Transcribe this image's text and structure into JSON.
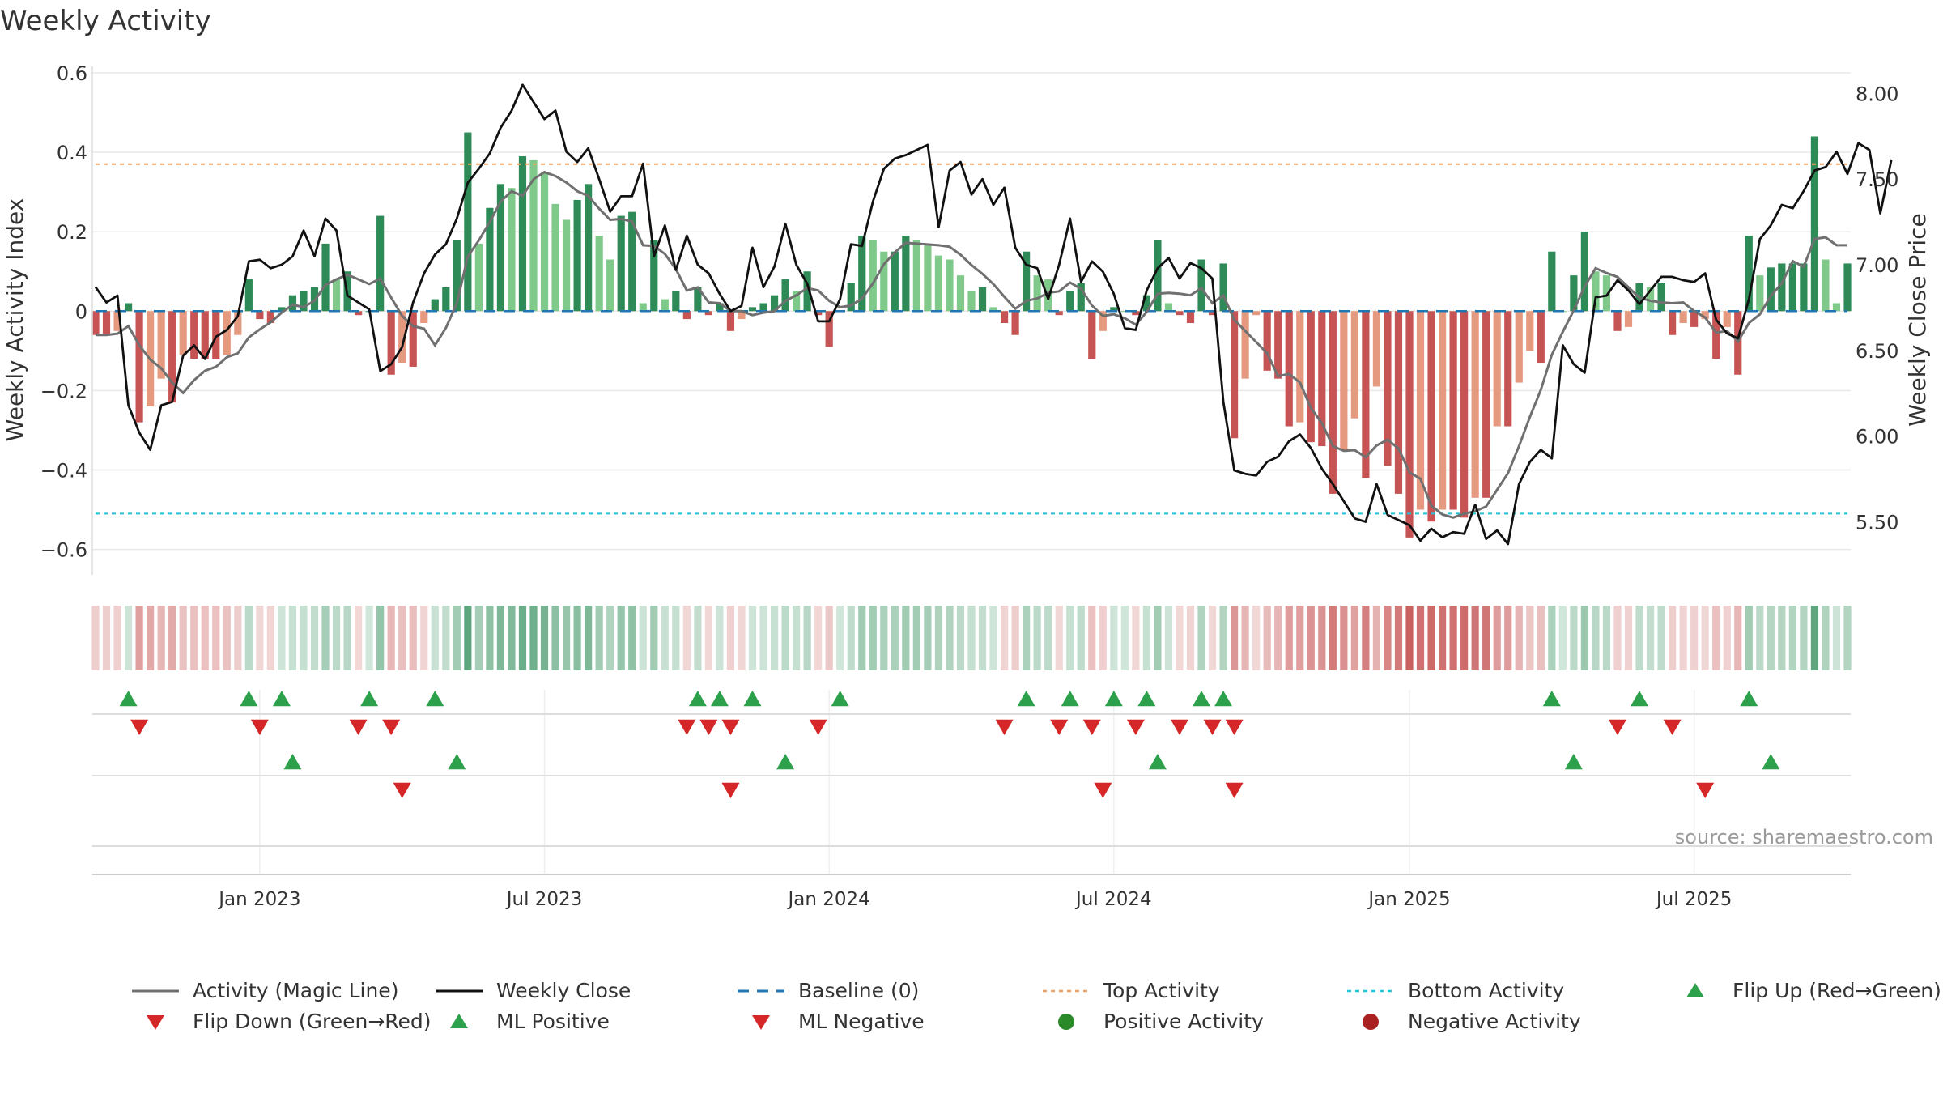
{
  "chart_data": {
    "type": "bar+line",
    "title": "Weekly Activity",
    "ylabel_left": "Weekly Activity Index",
    "ylabel_right": "Weekly Close Price",
    "source": "source: sharemaestro.com",
    "ylim_left": [
      -0.66,
      0.6
    ],
    "ylim_right": [
      5.2,
      8.12
    ],
    "yticks_left": [
      {
        "v": 0.6,
        "label": "0.6"
      },
      {
        "v": 0.4,
        "label": "0.4"
      },
      {
        "v": 0.2,
        "label": "0.2"
      },
      {
        "v": 0,
        "label": "0"
      },
      {
        "v": -0.2,
        "label": "−0.2"
      },
      {
        "v": -0.4,
        "label": "−0.4"
      },
      {
        "v": -0.6,
        "label": "−0.6"
      }
    ],
    "yticks_right": [
      {
        "v": 8.0,
        "label": "8.00"
      },
      {
        "v": 7.5,
        "label": "7.50"
      },
      {
        "v": 7.0,
        "label": "7.00"
      },
      {
        "v": 6.5,
        "label": "6.50"
      },
      {
        "v": 6.0,
        "label": "6.00"
      },
      {
        "v": 5.5,
        "label": "5.50"
      }
    ],
    "xticks": [
      {
        "i": 15,
        "label": "Jan 2023"
      },
      {
        "i": 41,
        "label": "Jul 2023"
      },
      {
        "i": 67,
        "label": "Jan 2024"
      },
      {
        "i": 93,
        "label": "Jul 2024"
      },
      {
        "i": 120,
        "label": "Jan 2025"
      },
      {
        "i": 146,
        "label": "Jul 2025"
      }
    ],
    "top_activity": 0.37,
    "bottom_activity": -0.51,
    "activity": [
      -0.06,
      -0.06,
      -0.05,
      0.02,
      -0.28,
      -0.24,
      -0.17,
      -0.23,
      -0.11,
      -0.12,
      -0.12,
      -0.12,
      -0.11,
      -0.06,
      0.08,
      -0.02,
      -0.03,
      0.01,
      0.04,
      0.05,
      0.06,
      0.17,
      0.08,
      0.1,
      -0.01,
      0.0,
      0.24,
      -0.16,
      -0.13,
      -0.14,
      -0.03,
      0.03,
      0.06,
      0.18,
      0.45,
      0.17,
      0.26,
      0.32,
      0.31,
      0.39,
      0.38,
      0.35,
      0.27,
      0.23,
      0.28,
      0.32,
      0.19,
      0.13,
      0.24,
      0.25,
      0.02,
      0.18,
      0.03,
      0.05,
      -0.02,
      0.06,
      -0.01,
      0.02,
      -0.05,
      -0.02,
      0.01,
      0.02,
      0.04,
      0.08,
      0.05,
      0.1,
      -0.01,
      -0.09,
      0.0,
      0.07,
      0.19,
      0.18,
      0.15,
      0.15,
      0.19,
      0.18,
      0.17,
      0.14,
      0.13,
      0.09,
      0.05,
      0.06,
      0.01,
      -0.03,
      -0.06,
      0.15,
      0.09,
      0.08,
      -0.01,
      0.05,
      0.07,
      -0.12,
      -0.05,
      0.01,
      0.0,
      -0.01,
      0.04,
      0.18,
      0.02,
      -0.01,
      -0.03,
      0.13,
      -0.01,
      0.12,
      -0.32,
      -0.17,
      -0.01,
      -0.15,
      -0.17,
      -0.29,
      -0.28,
      -0.33,
      -0.34,
      -0.46,
      -0.35,
      -0.27,
      -0.42,
      -0.19,
      -0.39,
      -0.46,
      -0.57,
      -0.5,
      -0.53,
      -0.5,
      -0.5,
      -0.52,
      -0.47,
      -0.47,
      -0.29,
      -0.29,
      -0.18,
      -0.1,
      -0.13,
      0.15,
      0.0,
      0.09,
      0.2,
      0.1,
      0.09,
      -0.05,
      -0.04,
      0.07,
      0.06,
      0.07,
      -0.06,
      -0.03,
      -0.04,
      -0.02,
      -0.12,
      -0.04,
      -0.16,
      0.19,
      0.09,
      0.11,
      0.12,
      0.12,
      0.12,
      0.44,
      0.13,
      0.02,
      0.12
    ],
    "weekly_close": [
      6.87,
      6.78,
      6.82,
      6.18,
      6.02,
      5.92,
      6.18,
      6.2,
      6.47,
      6.53,
      6.45,
      6.58,
      6.62,
      6.7,
      7.02,
      7.03,
      6.98,
      7.0,
      7.05,
      7.2,
      7.05,
      7.27,
      7.2,
      6.82,
      6.78,
      6.74,
      6.38,
      6.42,
      6.52,
      6.78,
      6.95,
      7.06,
      7.12,
      7.27,
      7.48,
      7.56,
      7.65,
      7.8,
      7.9,
      8.05,
      7.95,
      7.85,
      7.9,
      7.66,
      7.6,
      7.68,
      7.5,
      7.31,
      7.4,
      7.4,
      7.59,
      7.05,
      7.23,
      6.97,
      7.17,
      7.0,
      6.95,
      6.83,
      6.73,
      6.76,
      7.1,
      6.87,
      6.99,
      7.24,
      7.0,
      6.89,
      6.67,
      6.67,
      6.8,
      7.12,
      7.11,
      7.37,
      7.56,
      7.62,
      7.64,
      7.67,
      7.7,
      7.22,
      7.55,
      7.6,
      7.41,
      7.5,
      7.35,
      7.45,
      7.1,
      7.0,
      6.98,
      6.8,
      7.0,
      7.27,
      6.9,
      7.02,
      6.96,
      6.83,
      6.63,
      6.62,
      6.85,
      6.98,
      7.04,
      6.92,
      7.01,
      6.98,
      6.92,
      6.2,
      5.8,
      5.78,
      5.77,
      5.85,
      5.88,
      5.97,
      6.01,
      5.93,
      5.81,
      5.72,
      5.62,
      5.52,
      5.5,
      5.72,
      5.54,
      5.51,
      5.48,
      5.39,
      5.46,
      5.41,
      5.44,
      5.43,
      5.6,
      5.4,
      5.45,
      5.37,
      5.72,
      5.85,
      5.92,
      5.87,
      6.53,
      6.42,
      6.37,
      6.81,
      6.82,
      6.91,
      6.85,
      6.77,
      6.85,
      6.93,
      6.93,
      6.91,
      6.9,
      6.95,
      6.68,
      6.6,
      6.57,
      6.8,
      7.15,
      7.23,
      7.35,
      7.33,
      7.43,
      7.55,
      7.57,
      7.66,
      7.53,
      7.71,
      7.67,
      7.3,
      7.61
    ]
  },
  "legend": [
    {
      "key": "magic",
      "label": "Activity (Magic Line)"
    },
    {
      "key": "close",
      "label": "Weekly Close"
    },
    {
      "key": "baseline",
      "label": "Baseline (0)"
    },
    {
      "key": "top",
      "label": "Top Activity"
    },
    {
      "key": "bottom",
      "label": "Bottom Activity"
    },
    {
      "key": "flipup",
      "label": "Flip Up (Red→Green)"
    },
    {
      "key": "flipdown",
      "label": "Flip Down (Green→Red)"
    },
    {
      "key": "mlpos",
      "label": "ML Positive"
    },
    {
      "key": "mlneg",
      "label": "ML Negative"
    },
    {
      "key": "posact",
      "label": "Positive Activity"
    },
    {
      "key": "negact",
      "label": "Negative Activity"
    }
  ],
  "colors": {
    "pos_strong": "#2e8b57",
    "pos_light": "#7fc98a",
    "neg_strong": "#c65454",
    "neg_light": "#e59a80",
    "close": "#111111",
    "magic": "#707070",
    "baseline": "#1f77b4",
    "top": "#f0a060",
    "bottom": "#22c3d6",
    "flip_up": "#2ca04a",
    "flip_down": "#d62728"
  }
}
